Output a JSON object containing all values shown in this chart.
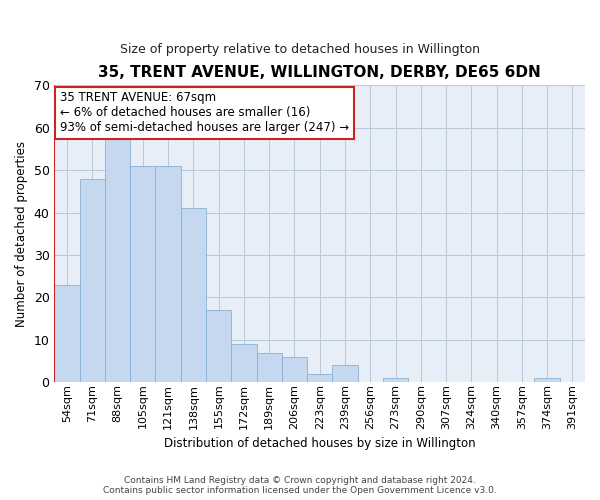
{
  "title": "35, TRENT AVENUE, WILLINGTON, DERBY, DE65 6DN",
  "subtitle": "Size of property relative to detached houses in Willington",
  "xlabel": "Distribution of detached houses by size in Willington",
  "ylabel": "Number of detached properties",
  "bar_color": "#c5d8f0",
  "bar_edge_color": "#8ab0d4",
  "highlight_edge_color": "#cc2222",
  "background_color": "#e8eef8",
  "categories": [
    "54sqm",
    "71sqm",
    "88sqm",
    "105sqm",
    "121sqm",
    "138sqm",
    "155sqm",
    "172sqm",
    "189sqm",
    "206sqm",
    "223sqm",
    "239sqm",
    "256sqm",
    "273sqm",
    "290sqm",
    "307sqm",
    "324sqm",
    "340sqm",
    "357sqm",
    "374sqm",
    "391sqm"
  ],
  "values": [
    23,
    48,
    58,
    51,
    51,
    41,
    17,
    9,
    7,
    6,
    2,
    4,
    0,
    1,
    0,
    0,
    0,
    0,
    0,
    1,
    0
  ],
  "ylim": [
    0,
    70
  ],
  "yticks": [
    0,
    10,
    20,
    30,
    40,
    50,
    60,
    70
  ],
  "annotation_text": "35 TRENT AVENUE: 67sqm\n← 6% of detached houses are smaller (16)\n93% of semi-detached houses are larger (247) →",
  "footer_line1": "Contains HM Land Registry data © Crown copyright and database right 2024.",
  "footer_line2": "Contains public sector information licensed under the Open Government Licence v3.0."
}
